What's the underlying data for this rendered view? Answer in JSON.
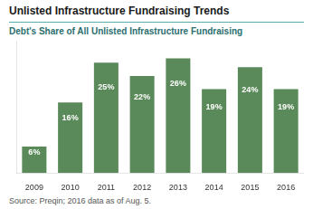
{
  "chart_data": {
    "type": "bar",
    "title": "Unlisted Infrastructure Fundraising Trends",
    "subtitle": "Debt's Share of All Unlisted Infrastructure Fundraising",
    "source": "Source: Preqin; 2016 data as of Aug. 5.",
    "categories": [
      "2009",
      "2010",
      "2011",
      "2012",
      "2013",
      "2014",
      "2015",
      "2016"
    ],
    "values": [
      6,
      16,
      25,
      22,
      26,
      19,
      24,
      19
    ],
    "value_labels": [
      "6%",
      "16%",
      "25%",
      "22%",
      "26%",
      "19%",
      "24%",
      "19%"
    ],
    "color": "#5a8a5a",
    "ylim": [
      0,
      30
    ],
    "grid": false,
    "data_labels": true,
    "tick_labels": "x"
  }
}
